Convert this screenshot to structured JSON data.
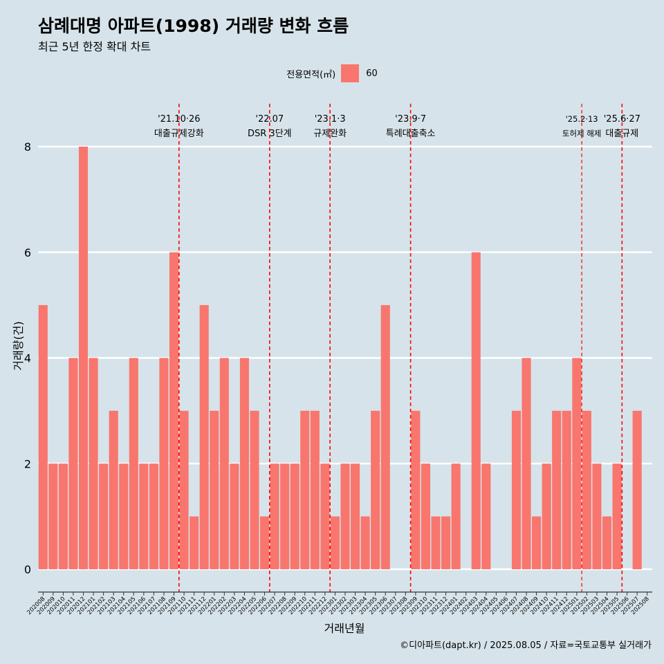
{
  "title": "삼례대명 아파트(1998) 거래량 변화 흐름",
  "subtitle": "최근 5년 한정 확대 차트",
  "legend": {
    "title": "전용면적(㎡)",
    "item": "60"
  },
  "caption": "©디아파트(dapt.kr) / 2025.08.05 / 자료=국토교통부 실거래가",
  "colors": {
    "bar": "#f8766d",
    "background": "#d6e3ea",
    "grid": "#ffffff",
    "event_line": "#ff0000"
  },
  "chart_data": {
    "type": "bar",
    "xlabel": "거래년월",
    "ylabel": "거래량(건)",
    "ylim": [
      0,
      8
    ],
    "yticks": [
      0,
      2,
      4,
      6,
      8
    ],
    "grid": true,
    "legend_position": "top",
    "categories": [
      "202008",
      "202009",
      "202010",
      "202011",
      "202012",
      "202101",
      "202102",
      "202103",
      "202104",
      "202105",
      "202106",
      "202107",
      "202108",
      "202109",
      "202110",
      "202111",
      "202112",
      "202201",
      "202202",
      "202203",
      "202204",
      "202205",
      "202206",
      "202207",
      "202208",
      "202209",
      "202210",
      "202211",
      "202212",
      "202301",
      "202302",
      "202303",
      "202304",
      "202305",
      "202306",
      "202307",
      "202308",
      "202309",
      "202310",
      "202311",
      "202312",
      "202401",
      "202402",
      "202403",
      "202404",
      "202405",
      "202406",
      "202407",
      "202408",
      "202409",
      "202410",
      "202411",
      "202412",
      "202501",
      "202502",
      "202503",
      "202504",
      "202505",
      "202506",
      "202507",
      "202508"
    ],
    "series": [
      {
        "name": "60",
        "values": [
          5,
          2,
          2,
          4,
          8,
          4,
          2,
          3,
          2,
          4,
          2,
          2,
          4,
          6,
          3,
          1,
          5,
          3,
          4,
          2,
          4,
          3,
          1,
          2,
          2,
          2,
          3,
          3,
          2,
          1,
          2,
          2,
          1,
          3,
          5,
          0,
          0,
          3,
          2,
          1,
          1,
          2,
          0,
          6,
          2,
          0,
          0,
          3,
          4,
          1,
          2,
          3,
          3,
          4,
          3,
          2,
          1,
          2,
          0,
          3,
          0
        ]
      }
    ],
    "events": [
      {
        "x": "202110",
        "date": "'21.10·26",
        "label": "대출규제강화"
      },
      {
        "x": "202207",
        "date": "'22.07",
        "label": "DSR 3단계"
      },
      {
        "x": "202301",
        "date": "'23.1·3",
        "label": "규제완화"
      },
      {
        "x": "202309",
        "date": "'23.9·7",
        "label": "특례대출축소"
      },
      {
        "x": "202502",
        "date": "'25.2·13",
        "label": "토허제 해제"
      },
      {
        "x": "202506",
        "date": "'25.6·27",
        "label": "대출규제"
      }
    ]
  }
}
